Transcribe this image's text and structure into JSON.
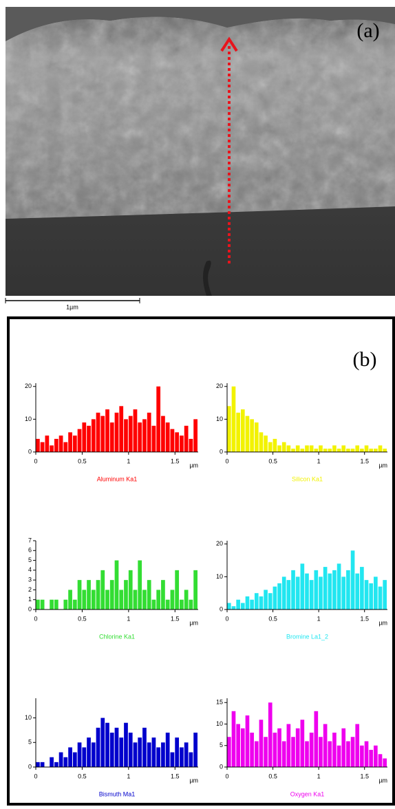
{
  "panel_a": {
    "label": "(a)",
    "scale_bar": "1µm"
  },
  "panel_b": {
    "label": "(b)"
  },
  "chart_data": [
    {
      "type": "histogram",
      "title": "Aluminum Ka1",
      "x_label": "µm",
      "color": "#ff0000",
      "bins": [
        0,
        0.05,
        0.1,
        0.15,
        0.2,
        0.25,
        0.3,
        0.35,
        0.4,
        0.45,
        0.5,
        0.55,
        0.6,
        0.65,
        0.7,
        0.75,
        0.8,
        0.85,
        0.9,
        0.95,
        1,
        1.05,
        1.1,
        1.15,
        1.2,
        1.25,
        1.3,
        1.35,
        1.4,
        1.45,
        1.5,
        1.55,
        1.6,
        1.65,
        1.7,
        1.75
      ],
      "values": [
        4,
        3,
        5,
        2,
        4,
        5,
        3,
        6,
        5,
        7,
        9,
        8,
        10,
        12,
        11,
        13,
        9,
        12,
        14,
        10,
        11,
        13,
        9,
        10,
        12,
        8,
        20,
        11,
        9,
        7,
        6,
        5,
        8,
        4,
        10
      ],
      "xlim": [
        0,
        1.75
      ],
      "xticks": [
        0,
        0.5,
        1,
        1.5
      ],
      "ylim": [
        0,
        21
      ],
      "yticks": [
        0,
        10,
        20
      ]
    },
    {
      "type": "histogram",
      "title": "Silicon Ka1",
      "x_label": "µm",
      "color": "#f2f200",
      "bins": [
        0,
        0.05,
        0.1,
        0.15,
        0.2,
        0.25,
        0.3,
        0.35,
        0.4,
        0.45,
        0.5,
        0.55,
        0.6,
        0.65,
        0.7,
        0.75,
        0.8,
        0.85,
        0.9,
        0.95,
        1,
        1.05,
        1.1,
        1.15,
        1.2,
        1.25,
        1.3,
        1.35,
        1.4,
        1.45,
        1.5,
        1.55,
        1.6,
        1.65,
        1.7,
        1.75
      ],
      "values": [
        14,
        20,
        12,
        13,
        11,
        10,
        9,
        6,
        5,
        3,
        4,
        2,
        3,
        2,
        1,
        2,
        1,
        2,
        2,
        1,
        2,
        1,
        1,
        2,
        1,
        2,
        1,
        1,
        2,
        1,
        2,
        1,
        1,
        2,
        1
      ],
      "xlim": [
        0,
        1.75
      ],
      "xticks": [
        0,
        0.5,
        1,
        1.5
      ],
      "ylim": [
        0,
        21
      ],
      "yticks": [
        0,
        10,
        20
      ]
    },
    {
      "type": "histogram",
      "title": "Chlorine Ka1",
      "x_label": "µm",
      "color": "#33dd33",
      "bins": [
        0,
        0.05,
        0.1,
        0.15,
        0.2,
        0.25,
        0.3,
        0.35,
        0.4,
        0.45,
        0.5,
        0.55,
        0.6,
        0.65,
        0.7,
        0.75,
        0.8,
        0.85,
        0.9,
        0.95,
        1,
        1.05,
        1.1,
        1.15,
        1.2,
        1.25,
        1.3,
        1.35,
        1.4,
        1.45,
        1.5,
        1.55,
        1.6,
        1.65,
        1.7,
        1.75
      ],
      "values": [
        1,
        1,
        0,
        1,
        1,
        0,
        1,
        2,
        1,
        3,
        2,
        3,
        2,
        3,
        4,
        2,
        3,
        5,
        2,
        3,
        4,
        2,
        5,
        2,
        3,
        1,
        2,
        3,
        1,
        2,
        4,
        1,
        2,
        1,
        4
      ],
      "xlim": [
        0,
        1.75
      ],
      "xticks": [
        0,
        0.5,
        1,
        1.5
      ],
      "ylim": [
        0,
        7
      ],
      "yticks": [
        0,
        1,
        2,
        3,
        4,
        5,
        6,
        7
      ]
    },
    {
      "type": "histogram",
      "title": "Bromine La1_2",
      "x_label": "µm",
      "color": "#22e6f0",
      "bins": [
        0,
        0.05,
        0.1,
        0.15,
        0.2,
        0.25,
        0.3,
        0.35,
        0.4,
        0.45,
        0.5,
        0.55,
        0.6,
        0.65,
        0.7,
        0.75,
        0.8,
        0.85,
        0.9,
        0.95,
        1,
        1.05,
        1.1,
        1.15,
        1.2,
        1.25,
        1.3,
        1.35,
        1.4,
        1.45,
        1.5,
        1.55,
        1.6,
        1.65,
        1.7,
        1.75
      ],
      "values": [
        2,
        1,
        3,
        2,
        4,
        3,
        5,
        4,
        6,
        5,
        7,
        8,
        10,
        9,
        12,
        10,
        14,
        11,
        9,
        12,
        10,
        13,
        11,
        12,
        14,
        10,
        12,
        18,
        11,
        13,
        9,
        8,
        10,
        7,
        9
      ],
      "xlim": [
        0,
        1.75
      ],
      "xticks": [
        0,
        0.5,
        1,
        1.5
      ],
      "ylim": [
        0,
        21
      ],
      "yticks": [
        0,
        10,
        20
      ]
    },
    {
      "type": "histogram",
      "title": "Bismuth Ma1",
      "x_label": "µm",
      "color": "#0000cc",
      "bins": [
        0,
        0.05,
        0.1,
        0.15,
        0.2,
        0.25,
        0.3,
        0.35,
        0.4,
        0.45,
        0.5,
        0.55,
        0.6,
        0.65,
        0.7,
        0.75,
        0.8,
        0.85,
        0.9,
        0.95,
        1,
        1.05,
        1.1,
        1.15,
        1.2,
        1.25,
        1.3,
        1.35,
        1.4,
        1.45,
        1.5,
        1.55,
        1.6,
        1.65,
        1.7,
        1.75
      ],
      "values": [
        1,
        1,
        0,
        2,
        1,
        3,
        2,
        4,
        3,
        5,
        4,
        6,
        5,
        8,
        10,
        9,
        7,
        8,
        6,
        9,
        7,
        5,
        6,
        8,
        5,
        6,
        4,
        5,
        7,
        3,
        6,
        4,
        5,
        3,
        7
      ],
      "xlim": [
        0,
        1.75
      ],
      "xticks": [
        0,
        0.5,
        1,
        1.5
      ],
      "ylim": [
        0,
        14
      ],
      "yticks": [
        0,
        5,
        10
      ]
    },
    {
      "type": "histogram",
      "title": "Oxygen Ka1",
      "x_label": "µm",
      "color": "#ee00ee",
      "bins": [
        0,
        0.05,
        0.1,
        0.15,
        0.2,
        0.25,
        0.3,
        0.35,
        0.4,
        0.45,
        0.5,
        0.55,
        0.6,
        0.65,
        0.7,
        0.75,
        0.8,
        0.85,
        0.9,
        0.95,
        1,
        1.05,
        1.1,
        1.15,
        1.2,
        1.25,
        1.3,
        1.35,
        1.4,
        1.45,
        1.5,
        1.55,
        1.6,
        1.65,
        1.7,
        1.75
      ],
      "values": [
        7,
        13,
        10,
        9,
        12,
        8,
        6,
        11,
        7,
        15,
        8,
        9,
        6,
        10,
        7,
        9,
        11,
        6,
        8,
        13,
        7,
        10,
        6,
        8,
        5,
        9,
        6,
        7,
        10,
        5,
        6,
        4,
        5,
        3,
        2
      ],
      "xlim": [
        0,
        1.75
      ],
      "xticks": [
        0,
        0.5,
        1,
        1.5
      ],
      "ylim": [
        0,
        16
      ],
      "yticks": [
        0,
        5,
        10,
        15
      ]
    }
  ]
}
